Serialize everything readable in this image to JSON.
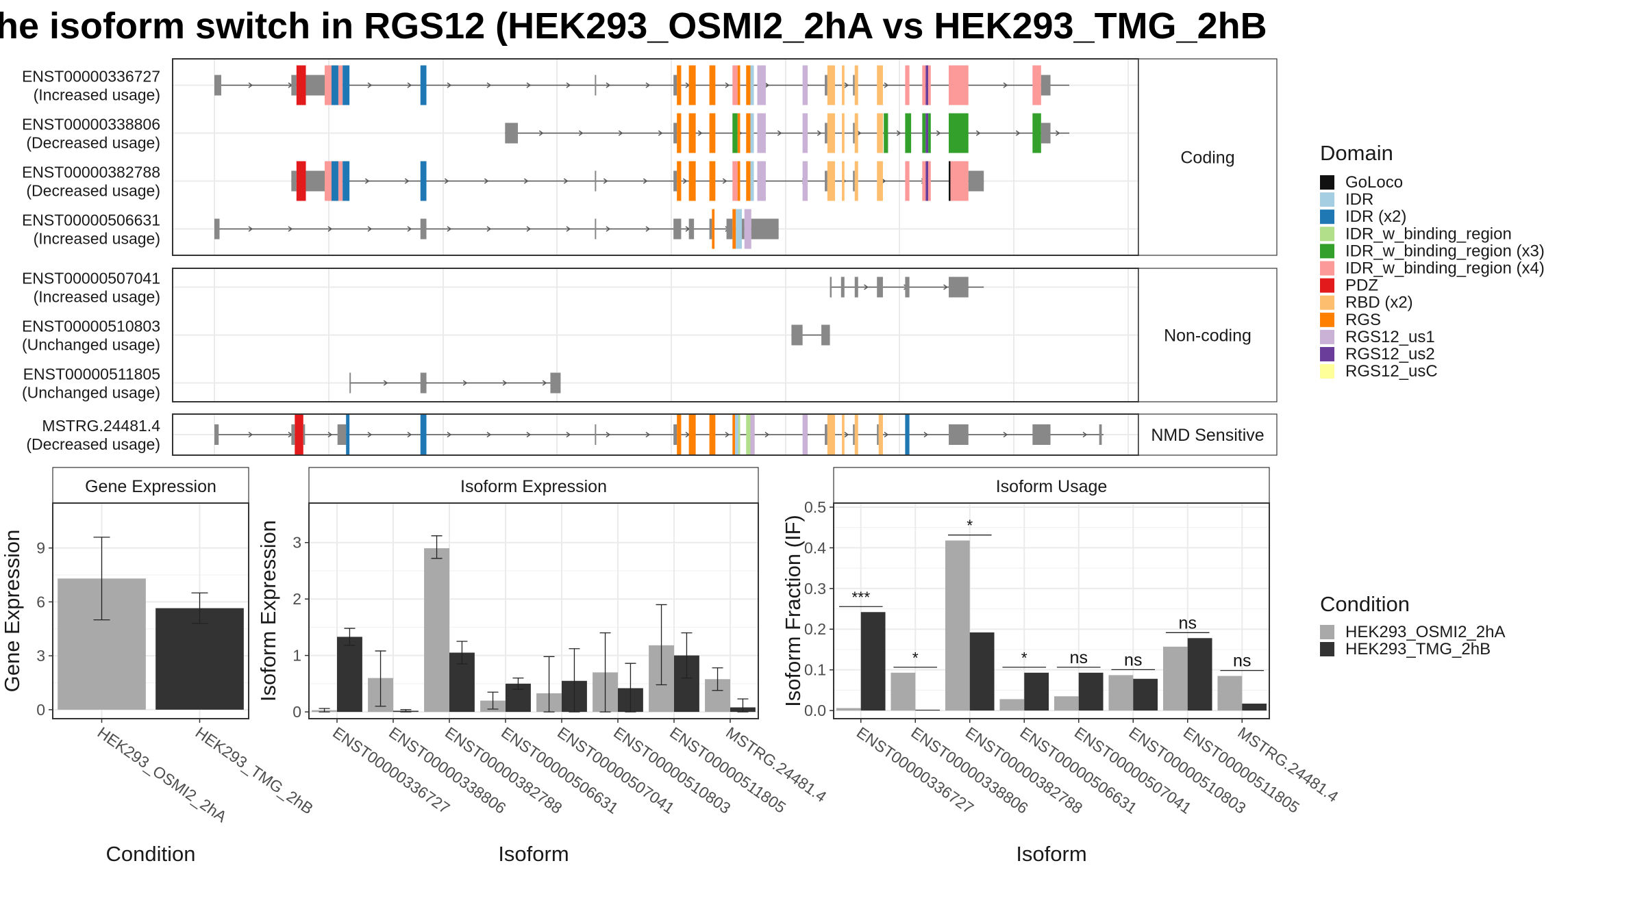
{
  "title": "he isoform switch in RGS12 (HEK293_OSMI2_2hA vs HEK293_TMG_2hB",
  "colors": {
    "intron": "#555555",
    "unannotated": "#888888",
    "bar_a": "#a9a9a9",
    "bar_b": "#333333",
    "grid": "#ebebeb",
    "frame": "#333333",
    "strip_fill": "#ffffff"
  },
  "isoform_plot": {
    "panels": [
      {
        "strip": "Coding",
        "rows": [
          "ENST00000336727",
          "ENST00000338806",
          "ENST00000382788",
          "ENST00000506631"
        ]
      },
      {
        "strip": "Non-coding",
        "rows": [
          "ENST00000507041",
          "ENST00000510803",
          "ENST00000511805"
        ]
      },
      {
        "strip": "NMD Sensitive",
        "rows": [
          "MSTRG.24481.4"
        ]
      }
    ],
    "transcripts": [
      {
        "id": "ENST00000336727",
        "label": "ENST00000336727",
        "usage": "(Increased usage)",
        "start": 0.0,
        "end": 1.0,
        "exons": [
          [
            0.0,
            0.008,
            "u"
          ],
          [
            0.09,
            0.096,
            "u"
          ],
          [
            0.096,
            0.107,
            "PDZ"
          ],
          [
            0.107,
            0.129,
            "u"
          ],
          [
            0.129,
            0.137,
            "IDR_w_binding_region (x4)"
          ],
          [
            0.137,
            0.145,
            "IDR (x2)"
          ],
          [
            0.145,
            0.15,
            "IDR_w_binding_region (x4)"
          ],
          [
            0.15,
            0.158,
            "IDR (x2)"
          ],
          [
            0.241,
            0.248,
            "IDR (x2)"
          ],
          [
            0.445,
            0.446,
            "u"
          ],
          [
            0.537,
            0.541,
            "u"
          ],
          [
            0.541,
            0.546,
            "RGS"
          ],
          [
            0.555,
            0.563,
            "RGS"
          ],
          [
            0.579,
            0.586,
            "RGS"
          ],
          [
            0.606,
            0.612,
            "IDR_w_binding_region (x4)"
          ],
          [
            0.612,
            0.615,
            "RGS"
          ],
          [
            0.622,
            0.627,
            "RGS"
          ],
          [
            0.627,
            0.631,
            "IDR"
          ],
          [
            0.635,
            0.645,
            "RGS12_us1"
          ],
          [
            0.688,
            0.694,
            "RGS12_us1"
          ],
          [
            0.714,
            0.717,
            "u"
          ],
          [
            0.717,
            0.726,
            "RBD (x2)"
          ],
          [
            0.734,
            0.737,
            "RBD (x2)"
          ],
          [
            0.747,
            0.749,
            "u"
          ],
          [
            0.749,
            0.753,
            "RBD (x2)"
          ],
          [
            0.775,
            0.782,
            "RBD (x2)"
          ],
          [
            0.808,
            0.813,
            "IDR_w_binding_region (x4)"
          ],
          [
            0.828,
            0.832,
            "IDR_w_binding_region (x4)"
          ],
          [
            0.832,
            0.835,
            "RGS12_us2"
          ],
          [
            0.835,
            0.838,
            "IDR_w_binding_region (x4)"
          ],
          [
            0.859,
            0.882,
            "IDR_w_binding_region (x4)"
          ],
          [
            0.957,
            0.967,
            "IDR_w_binding_region (x4)"
          ],
          [
            0.967,
            0.978,
            "u"
          ]
        ]
      },
      {
        "id": "ENST00000338806",
        "label": "ENST00000338806",
        "usage": "(Decreased usage)",
        "start": 0.34,
        "end": 1.0,
        "exons": [
          [
            0.34,
            0.353,
            "u"
          ],
          [
            0.353,
            0.355,
            "u"
          ],
          [
            0.537,
            0.541,
            "u"
          ],
          [
            0.541,
            0.546,
            "RGS"
          ],
          [
            0.555,
            0.563,
            "RGS"
          ],
          [
            0.579,
            0.586,
            "RGS"
          ],
          [
            0.606,
            0.612,
            "IDR_w_binding_region (x3)"
          ],
          [
            0.612,
            0.615,
            "RGS"
          ],
          [
            0.622,
            0.627,
            "RGS"
          ],
          [
            0.627,
            0.631,
            "IDR"
          ],
          [
            0.635,
            0.645,
            "RGS12_us1"
          ],
          [
            0.688,
            0.694,
            "RGS12_us1"
          ],
          [
            0.714,
            0.717,
            "u"
          ],
          [
            0.717,
            0.726,
            "RBD (x2)"
          ],
          [
            0.734,
            0.737,
            "RBD (x2)"
          ],
          [
            0.747,
            0.749,
            "u"
          ],
          [
            0.749,
            0.753,
            "RBD (x2)"
          ],
          [
            0.775,
            0.782,
            "RBD (x2)"
          ],
          [
            0.783,
            0.788,
            "IDR_w_binding_region (x3)"
          ],
          [
            0.808,
            0.815,
            "IDR_w_binding_region (x3)"
          ],
          [
            0.828,
            0.832,
            "IDR_w_binding_region (x3)"
          ],
          [
            0.832,
            0.835,
            "RGS12_us2"
          ],
          [
            0.835,
            0.838,
            "IDR_w_binding_region (x3)"
          ],
          [
            0.859,
            0.882,
            "IDR_w_binding_region (x3)"
          ],
          [
            0.957,
            0.967,
            "IDR_w_binding_region (x3)"
          ],
          [
            0.967,
            0.978,
            "u"
          ]
        ]
      },
      {
        "id": "ENST00000382788",
        "label": "ENST00000382788",
        "usage": "(Decreased usage)",
        "start": 0.09,
        "end": 0.9,
        "exons": [
          [
            0.09,
            0.096,
            "u"
          ],
          [
            0.096,
            0.107,
            "PDZ"
          ],
          [
            0.107,
            0.129,
            "u"
          ],
          [
            0.129,
            0.137,
            "IDR_w_binding_region (x4)"
          ],
          [
            0.137,
            0.145,
            "IDR (x2)"
          ],
          [
            0.145,
            0.15,
            "IDR_w_binding_region (x4)"
          ],
          [
            0.15,
            0.158,
            "IDR (x2)"
          ],
          [
            0.241,
            0.248,
            "IDR (x2)"
          ],
          [
            0.445,
            0.446,
            "u"
          ],
          [
            0.537,
            0.541,
            "u"
          ],
          [
            0.541,
            0.546,
            "RGS"
          ],
          [
            0.555,
            0.563,
            "RGS"
          ],
          [
            0.579,
            0.586,
            "RGS"
          ],
          [
            0.606,
            0.612,
            "IDR_w_binding_region (x4)"
          ],
          [
            0.612,
            0.615,
            "RGS"
          ],
          [
            0.622,
            0.627,
            "RGS"
          ],
          [
            0.627,
            0.631,
            "IDR"
          ],
          [
            0.635,
            0.645,
            "RGS12_us1"
          ],
          [
            0.688,
            0.694,
            "RGS12_us1"
          ],
          [
            0.714,
            0.717,
            "u"
          ],
          [
            0.717,
            0.726,
            "RBD (x2)"
          ],
          [
            0.734,
            0.737,
            "RBD (x2)"
          ],
          [
            0.747,
            0.749,
            "u"
          ],
          [
            0.749,
            0.753,
            "RBD (x2)"
          ],
          [
            0.775,
            0.782,
            "RBD (x2)"
          ],
          [
            0.808,
            0.813,
            "IDR_w_binding_region (x4)"
          ],
          [
            0.828,
            0.832,
            "IDR_w_binding_region (x4)"
          ],
          [
            0.832,
            0.835,
            "RGS12_us2"
          ],
          [
            0.835,
            0.838,
            "IDR_w_binding_region (x4)"
          ],
          [
            0.859,
            0.861,
            "GoLoco"
          ],
          [
            0.861,
            0.882,
            "IDR_w_binding_region (x4)"
          ],
          [
            0.882,
            0.9,
            "u"
          ]
        ]
      },
      {
        "id": "ENST00000506631",
        "label": "ENST00000506631",
        "usage": "(Increased usage)",
        "start": 0.0,
        "end": 0.66,
        "exons": [
          [
            0.0,
            0.006,
            "u"
          ],
          [
            0.241,
            0.248,
            "u"
          ],
          [
            0.445,
            0.446,
            "u"
          ],
          [
            0.537,
            0.546,
            "u"
          ],
          [
            0.555,
            0.561,
            "u"
          ],
          [
            0.579,
            0.582,
            "u"
          ],
          [
            0.582,
            0.585,
            "RGS"
          ],
          [
            0.599,
            0.606,
            "u"
          ],
          [
            0.606,
            0.61,
            "RGS"
          ],
          [
            0.61,
            0.617,
            "IDR"
          ],
          [
            0.617,
            0.62,
            "u"
          ],
          [
            0.62,
            0.628,
            "RGS12_us1"
          ],
          [
            0.628,
            0.66,
            "u"
          ]
        ]
      },
      {
        "id": "ENST00000507041",
        "label": "ENST00000507041",
        "usage": "(Increased usage)",
        "start": 0.72,
        "end": 0.9,
        "exons": [
          [
            0.72,
            0.722,
            "u"
          ],
          [
            0.733,
            0.737,
            "u"
          ],
          [
            0.749,
            0.753,
            "u"
          ],
          [
            0.775,
            0.782,
            "u"
          ],
          [
            0.808,
            0.813,
            "u"
          ],
          [
            0.859,
            0.882,
            "u"
          ]
        ]
      },
      {
        "id": "ENST00000510803",
        "label": "ENST00000510803",
        "usage": "(Unchanged usage)",
        "start": 0.675,
        "end": 0.72,
        "exons": [
          [
            0.675,
            0.688,
            "u"
          ],
          [
            0.71,
            0.72,
            "u"
          ]
        ]
      },
      {
        "id": "ENST00000511805",
        "label": "ENST00000511805",
        "usage": "(Unchanged usage)",
        "start": 0.158,
        "end": 0.405,
        "exons": [
          [
            0.158,
            0.159,
            "u"
          ],
          [
            0.241,
            0.248,
            "u"
          ],
          [
            0.393,
            0.405,
            "u"
          ]
        ]
      },
      {
        "id": "MSTRG.24481.4",
        "label": "MSTRG.24481.4",
        "usage": "(Decreased usage)",
        "start": 0.0,
        "end": 1.04,
        "exons": [
          [
            0.0,
            0.005,
            "u"
          ],
          [
            0.09,
            0.094,
            "u"
          ],
          [
            0.094,
            0.104,
            "PDZ"
          ],
          [
            0.104,
            0.106,
            "u"
          ],
          [
            0.144,
            0.154,
            "u"
          ],
          [
            0.154,
            0.158,
            "IDR (x2)"
          ],
          [
            0.241,
            0.248,
            "IDR (x2)"
          ],
          [
            0.445,
            0.446,
            "u"
          ],
          [
            0.537,
            0.541,
            "u"
          ],
          [
            0.541,
            0.546,
            "RGS"
          ],
          [
            0.555,
            0.563,
            "RGS"
          ],
          [
            0.579,
            0.586,
            "RGS"
          ],
          [
            0.606,
            0.609,
            "RGS"
          ],
          [
            0.609,
            0.613,
            "IDR"
          ],
          [
            0.613,
            0.615,
            "IDR_w_binding_region"
          ],
          [
            0.622,
            0.627,
            "IDR_w_binding_region"
          ],
          [
            0.627,
            0.632,
            "RGS12_us1"
          ],
          [
            0.688,
            0.694,
            "RGS12_us1"
          ],
          [
            0.714,
            0.717,
            "u"
          ],
          [
            0.717,
            0.726,
            "RBD (x2)"
          ],
          [
            0.734,
            0.737,
            "RBD (x2)"
          ],
          [
            0.747,
            0.749,
            "u"
          ],
          [
            0.749,
            0.753,
            "RBD (x2)"
          ],
          [
            0.775,
            0.777,
            "u"
          ],
          [
            0.777,
            0.782,
            "RBD (x2)"
          ],
          [
            0.808,
            0.813,
            "IDR (x2)"
          ],
          [
            0.859,
            0.882,
            "u"
          ],
          [
            0.957,
            0.978,
            "u"
          ],
          [
            1.035,
            1.038,
            "u"
          ]
        ]
      }
    ],
    "legend": {
      "title": "Domain",
      "entries": [
        {
          "name": "GoLoco",
          "color": "#111111"
        },
        {
          "name": "IDR",
          "color": "#a6cee3"
        },
        {
          "name": "IDR (x2)",
          "color": "#1f78b4"
        },
        {
          "name": "IDR_w_binding_region",
          "color": "#b2df8a"
        },
        {
          "name": "IDR_w_binding_region (x3)",
          "color": "#33a02c"
        },
        {
          "name": "IDR_w_binding_region (x4)",
          "color": "#fb9a99"
        },
        {
          "name": "PDZ",
          "color": "#e31a1c"
        },
        {
          "name": "RBD (x2)",
          "color": "#fdbf6f"
        },
        {
          "name": "RGS",
          "color": "#ff7f00"
        },
        {
          "name": "RGS12_us1",
          "color": "#cab2d6"
        },
        {
          "name": "RGS12_us2",
          "color": "#6a3d9a"
        },
        {
          "name": "RGS12_usC",
          "color": "#ffff99"
        }
      ]
    }
  },
  "chart_data": [
    {
      "type": "bar",
      "strip": "Gene Expression",
      "categories": [
        "HEK293_OSMI2_2hA",
        "HEK293_TMG_2hB"
      ],
      "values": [
        7.3,
        5.65
      ],
      "errors": [
        [
          5.0,
          9.6
        ],
        [
          4.8,
          6.5
        ]
      ],
      "xlabel": "Condition",
      "ylabel": "Gene Expression",
      "ylim": [
        -0.5,
        11.5
      ],
      "yticks": [
        0,
        3,
        6,
        9
      ],
      "grid": true
    },
    {
      "type": "bar",
      "strip": "Isoform Expression",
      "categories": [
        "ENST00000336727",
        "ENST00000338806",
        "ENST00000382788",
        "ENST00000506631",
        "ENST00000507041",
        "ENST00000510803",
        "ENST00000511805",
        "MSTRG.24481.4"
      ],
      "series": [
        {
          "name": "HEK293_OSMI2_2hA",
          "values": [
            0.03,
            0.6,
            2.9,
            0.2,
            0.33,
            0.7,
            1.18,
            0.58
          ],
          "errors": [
            [
              0.0,
              0.06
            ],
            [
              0.1,
              1.08
            ],
            [
              2.72,
              3.12
            ],
            [
              0.05,
              0.35
            ],
            [
              0.0,
              0.98
            ],
            [
              0.0,
              1.4
            ],
            [
              0.48,
              1.9
            ],
            [
              0.38,
              0.78
            ]
          ]
        },
        {
          "name": "HEK293_TMG_2hB",
          "values": [
            1.33,
            0.02,
            1.05,
            0.5,
            0.55,
            0.42,
            1.0,
            0.08
          ],
          "errors": [
            [
              1.18,
              1.48
            ],
            [
              0.0,
              0.04
            ],
            [
              0.85,
              1.25
            ],
            [
              0.4,
              0.6
            ],
            [
              0.0,
              1.12
            ],
            [
              0.0,
              0.86
            ],
            [
              0.6,
              1.4
            ],
            [
              0.0,
              0.23
            ]
          ]
        }
      ],
      "xlabel": "Isoform",
      "ylabel": "Isoform Expression",
      "ylim": [
        -0.12,
        3.7
      ],
      "yticks": [
        0,
        1,
        2,
        3
      ],
      "grid": true
    },
    {
      "type": "bar",
      "strip": "Isoform Usage",
      "categories": [
        "ENST00000336727",
        "ENST00000338806",
        "ENST00000382788",
        "ENST00000506631",
        "ENST00000507041",
        "ENST00000510803",
        "ENST00000511805",
        "MSTRG.24481.4"
      ],
      "series": [
        {
          "name": "HEK293_OSMI2_2hA",
          "values": [
            0.006,
            0.093,
            0.418,
            0.028,
            0.035,
            0.087,
            0.157,
            0.085
          ]
        },
        {
          "name": "HEK293_TMG_2hB",
          "values": [
            0.242,
            0.002,
            0.192,
            0.093,
            0.093,
            0.078,
            0.178,
            0.017
          ]
        }
      ],
      "significance": [
        "***",
        "*",
        "*",
        "*",
        "ns",
        "ns",
        "ns",
        "ns"
      ],
      "xlabel": "Isoform",
      "ylabel": "Isoform Fraction (IF)",
      "ylim": [
        -0.02,
        0.51
      ],
      "yticks": [
        0.0,
        0.1,
        0.2,
        0.3,
        0.4,
        0.5
      ],
      "ytick_labels": [
        "0.0",
        "0.1",
        "0.2",
        "0.3",
        "0.4",
        "0.5"
      ],
      "grid": true
    }
  ],
  "condition_legend": {
    "title": "Condition",
    "entries": [
      {
        "name": "HEK293_OSMI2_2hA",
        "color": "#a9a9a9"
      },
      {
        "name": "HEK293_TMG_2hB",
        "color": "#333333"
      }
    ]
  }
}
